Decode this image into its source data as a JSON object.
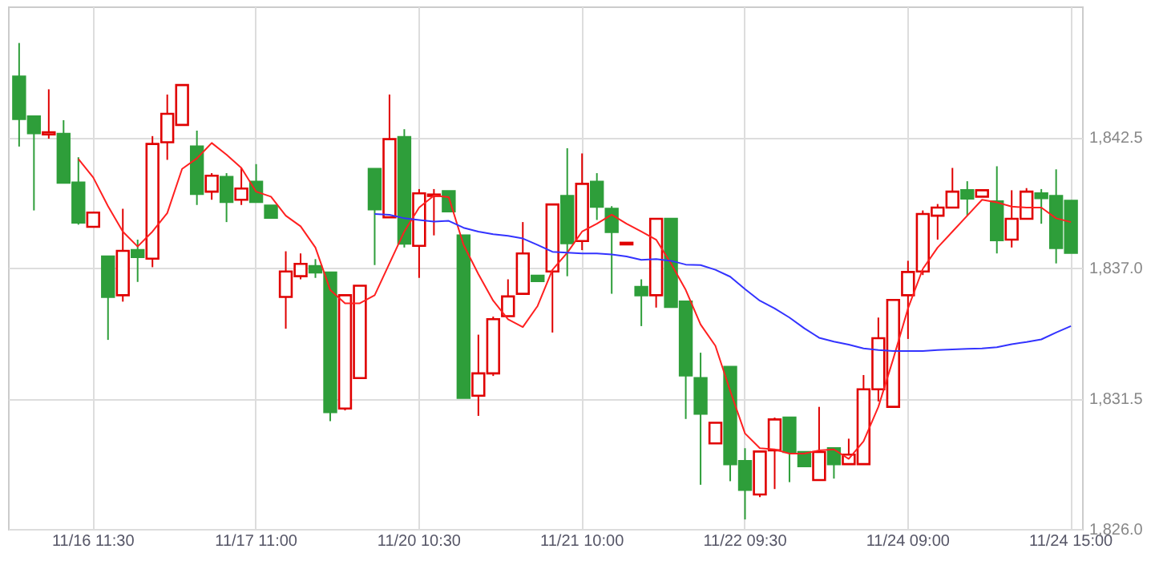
{
  "chart_data": {
    "type": "candlestick",
    "categories": [
      null,
      null,
      null,
      null,
      null,
      "11/16 11:30",
      null,
      null,
      null,
      null,
      null,
      null,
      null,
      null,
      null,
      null,
      "11/17 11:00",
      null,
      null,
      null,
      null,
      null,
      null,
      null,
      null,
      null,
      null,
      "11/20 10:30",
      null,
      null,
      null,
      null,
      null,
      null,
      null,
      null,
      null,
      null,
      "11/21 10:00",
      null,
      null,
      null,
      null,
      null,
      null,
      null,
      null,
      null,
      null,
      "11/22 09:30",
      null,
      null,
      null,
      null,
      null,
      null,
      null,
      null,
      null,
      null,
      "11/24 09:00",
      null,
      null,
      null,
      null,
      null,
      null,
      null,
      null,
      null,
      null,
      "11/24 15:00"
    ],
    "ohlc": [
      [
        1845.05,
        1846.46,
        1842.1,
        1843.26
      ],
      [
        1843.37,
        1843.37,
        1839.41,
        1842.66
      ],
      [
        1842.61,
        1844.51,
        1842.43,
        1842.7
      ],
      [
        1842.63,
        1843.21,
        1840.58,
        1840.58
      ],
      [
        1840.58,
        1841.65,
        1838.81,
        1838.9
      ],
      [
        1838.72,
        1839.32,
        1838.72,
        1839.32
      ],
      [
        1837.47,
        1837.47,
        1833.96,
        1835.77
      ],
      [
        1835.84,
        1839.48,
        1835.57,
        1837.71
      ],
      [
        1837.74,
        1838.18,
        1836.4,
        1837.45
      ],
      [
        1837.38,
        1842.54,
        1837.02,
        1842.21
      ],
      [
        1842.28,
        1844.29,
        1841.54,
        1843.48
      ],
      [
        1843.01,
        1844.69,
        1843.01,
        1844.69
      ],
      [
        1842.1,
        1842.77,
        1839.64,
        1840.11
      ],
      [
        1840.2,
        1840.98,
        1839.86,
        1840.87
      ],
      [
        1840.82,
        1840.98,
        1838.92,
        1839.77
      ],
      [
        1839.86,
        1841.2,
        1839.64,
        1840.33
      ],
      [
        1840.62,
        1841.36,
        1839.77,
        1839.77
      ],
      [
        1839.61,
        1839.61,
        1839.1,
        1839.1
      ],
      [
        1835.77,
        1837.69,
        1834.43,
        1836.84
      ],
      [
        1836.64,
        1837.6,
        1836.51,
        1837.16
      ],
      [
        1837.07,
        1837.36,
        1836.57,
        1836.8
      ],
      [
        1836.8,
        1836.8,
        1830.54,
        1830.92
      ],
      [
        1831.07,
        1835.84,
        1830.99,
        1835.84
      ],
      [
        1832.35,
        1836.24,
        1832.35,
        1836.24
      ],
      [
        1841.16,
        1841.16,
        1837.11,
        1839.46
      ],
      [
        1839.12,
        1844.29,
        1839.12,
        1842.41
      ],
      [
        1842.5,
        1842.83,
        1837.85,
        1838.01
      ],
      [
        1837.92,
        1840.31,
        1836.57,
        1840.13
      ],
      [
        1840.02,
        1840.31,
        1838.36,
        1840.08
      ],
      [
        1840.22,
        1840.22,
        1839.37,
        1839.37
      ],
      [
        1838.36,
        1838.36,
        1831.52,
        1831.52
      ],
      [
        1831.61,
        1834.18,
        1830.76,
        1832.55
      ],
      [
        1832.55,
        1834.94,
        1832.44,
        1834.83
      ],
      [
        1834.96,
        1836.51,
        1834.96,
        1835.79
      ],
      [
        1835.9,
        1838.92,
        1835.9,
        1837.6
      ],
      [
        1836.66,
        1836.66,
        1836.44,
        1836.44
      ],
      [
        1836.84,
        1839.66,
        1834.27,
        1839.66
      ],
      [
        1840.02,
        1842.03,
        1836.64,
        1838.03
      ],
      [
        1838.12,
        1841.81,
        1837.74,
        1840.53
      ],
      [
        1840.62,
        1840.98,
        1839.01,
        1839.57
      ],
      [
        1839.48,
        1839.59,
        1835.9,
        1838.5
      ],
      [
        1837.98,
        1838.05,
        1837.98,
        1838.05
      ],
      [
        1836.19,
        1836.51,
        1834.54,
        1835.84
      ],
      [
        1835.84,
        1839.06,
        1835.32,
        1839.06
      ],
      [
        1839.06,
        1839.06,
        1835.35,
        1835.35
      ],
      [
        1835.57,
        1835.57,
        1830.63,
        1832.46
      ],
      [
        1832.35,
        1833.42,
        1827.86,
        1830.85
      ],
      [
        1829.6,
        1830.47,
        1829.6,
        1830.47
      ],
      [
        1832.82,
        1832.82,
        1828.01,
        1828.73
      ],
      [
        1828.86,
        1829.4,
        1826.4,
        1827.65
      ],
      [
        1827.45,
        1829.26,
        1827.34,
        1829.26
      ],
      [
        1829.31,
        1830.69,
        1827.68,
        1830.61
      ],
      [
        1830.69,
        1830.69,
        1827.97,
        1829.24
      ],
      [
        1829.24,
        1829.24,
        1828.64,
        1828.64
      ],
      [
        1828.06,
        1831.14,
        1828.06,
        1829.24
      ],
      [
        1829.4,
        1829.4,
        1828.12,
        1828.73
      ],
      [
        1828.73,
        1829.8,
        1828.73,
        1829.13
      ],
      [
        1828.73,
        1832.48,
        1828.73,
        1831.88
      ],
      [
        1831.88,
        1834.9,
        1831.37,
        1834.03
      ],
      [
        1831.14,
        1835.64,
        1831.14,
        1835.64
      ],
      [
        1835.84,
        1837.29,
        1834.0,
        1836.82
      ],
      [
        1836.84,
        1839.41,
        1836.69,
        1839.26
      ],
      [
        1839.19,
        1839.68,
        1838.18,
        1839.53
      ],
      [
        1839.53,
        1841.2,
        1839.53,
        1840.2
      ],
      [
        1840.26,
        1840.64,
        1839.19,
        1839.91
      ],
      [
        1839.99,
        1840.26,
        1839.99,
        1840.26
      ],
      [
        1839.79,
        1841.27,
        1837.6,
        1838.16
      ],
      [
        1838.18,
        1840.26,
        1837.85,
        1839.06
      ],
      [
        1839.06,
        1840.35,
        1839.06,
        1840.2
      ],
      [
        1840.13,
        1840.31,
        1838.85,
        1839.93
      ],
      [
        1840.02,
        1841.14,
        1837.18,
        1837.83
      ],
      [
        1839.82,
        1839.82,
        1837.63,
        1837.63
      ]
    ],
    "colors": [
      "#2e9e3a",
      "#2e9e3a",
      "#e00000",
      "#2e9e3a",
      "#2e9e3a",
      "#e00000",
      "#2e9e3a",
      "#e00000",
      "#2e9e3a",
      "#e00000",
      "#e00000",
      "#e00000",
      "#2e9e3a",
      "#e00000",
      "#2e9e3a",
      "#e00000",
      "#2e9e3a",
      "#2e9e3a",
      "#e00000",
      "#e00000",
      "#2e9e3a",
      "#2e9e3a",
      "#e00000",
      "#e00000",
      "#2e9e3a",
      "#e00000",
      "#2e9e3a",
      "#e00000",
      "#e00000",
      "#2e9e3a",
      "#2e9e3a",
      "#e00000",
      "#e00000",
      "#e00000",
      "#e00000",
      "#2e9e3a",
      "#e00000",
      "#2e9e3a",
      "#e00000",
      "#2e9e3a",
      "#2e9e3a",
      "#e00000",
      "#2e9e3a",
      "#e00000",
      "#2e9e3a",
      "#2e9e3a",
      "#2e9e3a",
      "#e00000",
      "#2e9e3a",
      "#2e9e3a",
      "#e00000",
      "#e00000",
      "#2e9e3a",
      "#2e9e3a",
      "#e00000",
      "#2e9e3a",
      "#e00000",
      "#e00000",
      "#e00000",
      "#e00000",
      "#e00000",
      "#e00000",
      "#e00000",
      "#e00000",
      "#2e9e3a",
      "#e00000",
      "#2e9e3a",
      "#e00000",
      "#e00000",
      "#2e9e3a",
      "#2e9e3a",
      "#2e9e3a"
    ],
    "series": [
      {
        "type": "line",
        "color": "#ff2020",
        "values": [
          null,
          null,
          null,
          null,
          1841.58,
          1840.8,
          1839.59,
          1838.52,
          1837.89,
          1838.52,
          1839.3,
          1841.16,
          1841.6,
          1842.25,
          1841.76,
          1841.2,
          1840.2,
          1839.99,
          1839.19,
          1838.74,
          1837.85,
          1836.06,
          1835.5,
          1835.5,
          1835.84,
          1837.18,
          1838.52,
          1839.53,
          1840.04,
          1839.97,
          1837.96,
          1836.73,
          1835.61,
          1834.83,
          1834.5,
          1835.39,
          1836.91,
          1837.63,
          1838.52,
          1838.85,
          1839.23,
          1838.85,
          1838.52,
          1838.18,
          1837.18,
          1836.06,
          1834.61,
          1833.71,
          1831.81,
          1830.02,
          1829.4,
          1829.35,
          1829.17,
          1829.17,
          1829.31,
          1829.35,
          1828.95,
          1829.69,
          1831.14,
          1833.15,
          1835.28,
          1836.95,
          1837.85,
          1838.52,
          1839.19,
          1839.86,
          1839.75,
          1839.57,
          1839.53,
          1839.53,
          1839.08,
          1838.92
        ]
      },
      {
        "type": "line",
        "color": "#3333ff",
        "values": [
          null,
          null,
          null,
          null,
          null,
          null,
          null,
          null,
          null,
          null,
          null,
          null,
          null,
          null,
          null,
          null,
          null,
          null,
          null,
          null,
          null,
          null,
          null,
          null,
          1839.26,
          1839.23,
          1839.08,
          1839.01,
          1838.94,
          1838.97,
          1838.68,
          1838.52,
          1838.41,
          1838.34,
          1838.23,
          1837.96,
          1837.67,
          1837.63,
          1837.6,
          1837.6,
          1837.56,
          1837.47,
          1837.33,
          1837.36,
          1837.29,
          1837.13,
          1837.11,
          1836.91,
          1836.62,
          1836.1,
          1835.61,
          1835.28,
          1834.9,
          1834.45,
          1834.05,
          1833.89,
          1833.76,
          1833.6,
          1833.53,
          1833.49,
          1833.49,
          1833.49,
          1833.53,
          1833.56,
          1833.58,
          1833.6,
          1833.65,
          1833.78,
          1833.87,
          1833.98,
          1834.27,
          1834.54
        ]
      }
    ],
    "ylim": [
      1826,
      1848
    ],
    "yticks": [
      {
        "value": 1826,
        "label": "1,826.0"
      },
      {
        "value": 1831.5,
        "label": "1,831.5"
      },
      {
        "value": 1837,
        "label": "1,837.0"
      },
      {
        "value": 1842.5,
        "label": "1,842.5"
      }
    ],
    "grid": true
  }
}
